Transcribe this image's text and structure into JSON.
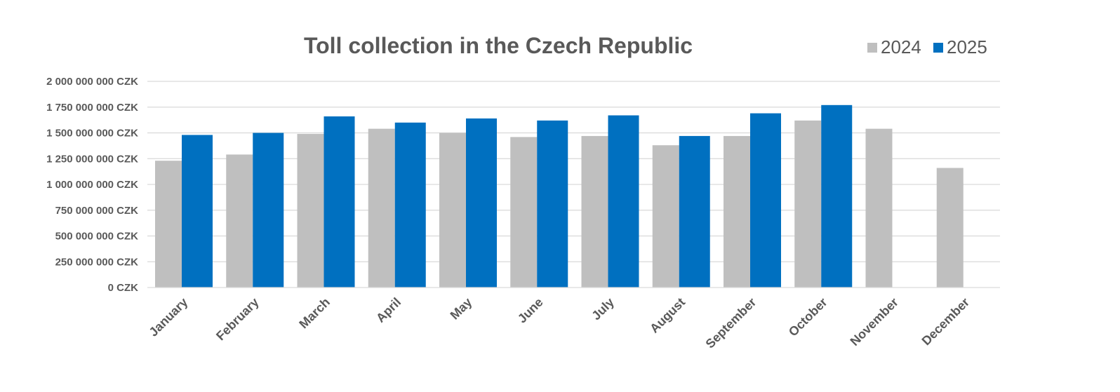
{
  "chart_data": {
    "type": "bar",
    "title": "Toll collection in the Czech Republic",
    "xlabel": "",
    "ylabel": "",
    "categories": [
      "January",
      "February",
      "March",
      "April",
      "May",
      "June",
      "July",
      "August",
      "September",
      "October",
      "November",
      "December"
    ],
    "series": [
      {
        "name": "2024",
        "color": "#bfbfbf",
        "values": [
          1230000000,
          1290000000,
          1490000000,
          1540000000,
          1500000000,
          1460000000,
          1470000000,
          1380000000,
          1470000000,
          1620000000,
          1540000000,
          1160000000
        ]
      },
      {
        "name": "2025",
        "color": "#0070c0",
        "values": [
          1480000000,
          1500000000,
          1660000000,
          1600000000,
          1640000000,
          1620000000,
          1670000000,
          1470000000,
          1690000000,
          1770000000,
          null,
          null
        ]
      }
    ],
    "ylim": [
      0,
      2000000000
    ],
    "y_ticks": [
      0,
      250000000,
      500000000,
      750000000,
      1000000000,
      1250000000,
      1500000000,
      1750000000,
      2000000000
    ],
    "y_tick_labels": [
      "0 CZK",
      "250 000 000 CZK",
      "500 000 000 CZK",
      "750 000 000 CZK",
      "1 000 000 000 CZK",
      "1 250 000 000 CZK",
      "1 500 000 000 CZK",
      "1 750 000 000 CZK",
      "2 000 000 000 CZK"
    ],
    "grid": true,
    "legend_position": "top-right"
  }
}
